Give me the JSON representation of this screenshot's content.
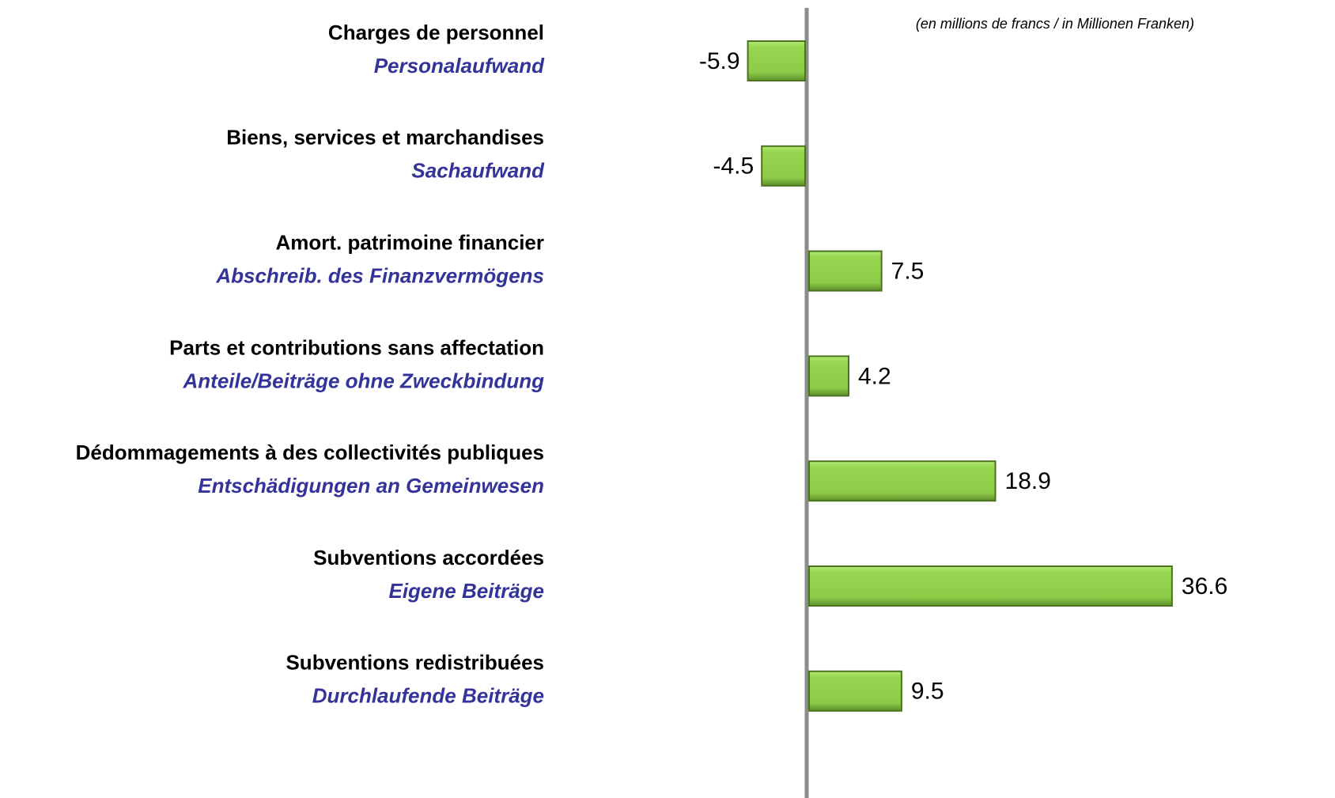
{
  "chart_data": {
    "type": "bar",
    "orientation": "horizontal",
    "note": "(en millions de francs / in Millionen Franken)",
    "categories": [
      "Charges de personnel",
      "Biens, services et marchandises",
      "Amort. patrimoine financier",
      "Parts et contributions sans affectation",
      "Dédommagements à des collectivités publiques",
      "Subventions accordées",
      "Subventions redistribuées"
    ],
    "subcategories": [
      "Personalaufwand",
      "Sachaufwand",
      "Abschreib. des Finanzvermögens",
      "Anteile/Beiträge ohne Zweckbindung",
      "Entschädigungen an Gemeinwesen",
      "Eigene Beiträge",
      "Durchlaufende Beiträge"
    ],
    "values": [
      -5.9,
      -4.5,
      7.5,
      4.2,
      18.9,
      36.6,
      9.5
    ],
    "color": "#92d050"
  }
}
